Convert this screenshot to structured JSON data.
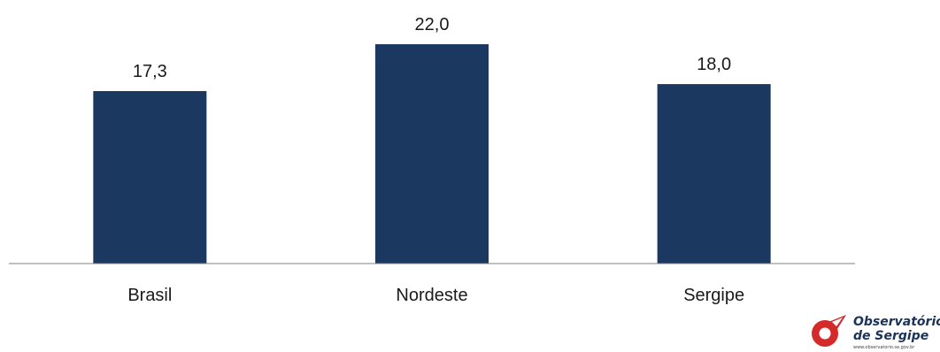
{
  "chart_data": {
    "type": "bar",
    "categories": [
      "Brasil",
      "Nordeste",
      "Sergipe"
    ],
    "values": [
      17.3,
      22.0,
      18.0
    ],
    "value_labels": [
      "17,3",
      "22,0",
      "18,0"
    ],
    "title": "",
    "xlabel": "",
    "ylabel": "",
    "ylim": [
      0,
      22.0
    ],
    "grid": false,
    "bar_color": "#1b3861",
    "axis_color": "#808080"
  },
  "logo": {
    "line1": "Observatório",
    "line2": "de Sergipe",
    "url": "www.observatorio.se.gov.br",
    "colors": {
      "red": "#d42a2a",
      "navy": "#1b3358"
    }
  }
}
